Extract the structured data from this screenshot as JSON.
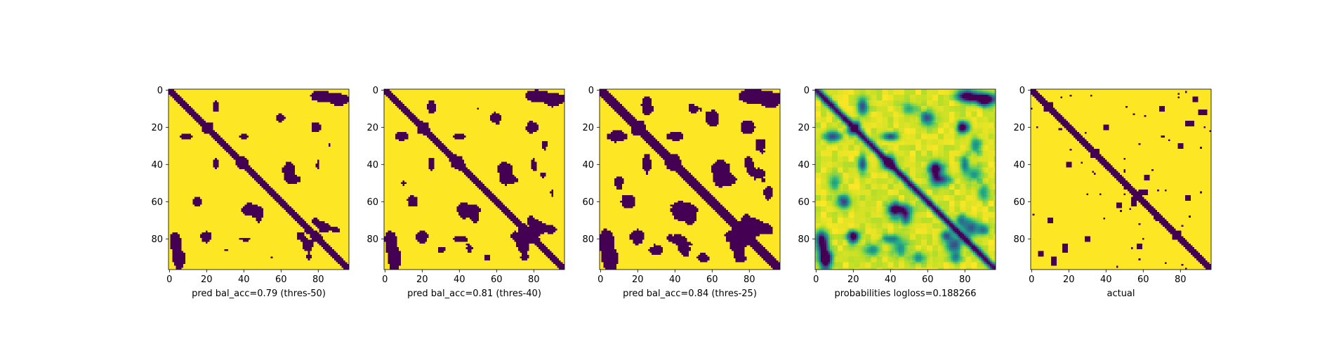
{
  "chart_data": [
    {
      "type": "heatmap",
      "title": "",
      "xlabel": "pred bal_acc=0.79 (thres-50)",
      "ylabel": "",
      "colormap": "viridis-binary",
      "x_ticks": [
        0,
        20,
        40,
        60,
        80
      ],
      "y_ticks": [
        0,
        20,
        40,
        60,
        80
      ],
      "xlim": [
        0,
        97
      ],
      "ylim": [
        97,
        0
      ],
      "size": 97,
      "threshold": 0.5
    },
    {
      "type": "heatmap",
      "title": "",
      "xlabel": "pred bal_acc=0.81 (thres-40)",
      "ylabel": "",
      "colormap": "viridis-binary",
      "x_ticks": [
        0,
        20,
        40,
        60,
        80
      ],
      "y_ticks": [
        0,
        20,
        40,
        60,
        80
      ],
      "xlim": [
        0,
        97
      ],
      "ylim": [
        97,
        0
      ],
      "size": 97,
      "threshold": 0.4
    },
    {
      "type": "heatmap",
      "title": "",
      "xlabel": "pred bal_acc=0.84 (thres-25)",
      "ylabel": "",
      "colormap": "viridis-binary",
      "x_ticks": [
        0,
        20,
        40,
        60,
        80
      ],
      "y_ticks": [
        0,
        20,
        40,
        60,
        80
      ],
      "xlim": [
        0,
        97
      ],
      "ylim": [
        97,
        0
      ],
      "size": 97,
      "threshold": 0.25
    },
    {
      "type": "heatmap",
      "title": "",
      "xlabel": "probabilities logloss=0.188266",
      "ylabel": "",
      "colormap": "viridis-continuous",
      "x_ticks": [
        0,
        20,
        40,
        60,
        80
      ],
      "y_ticks": [
        0,
        20,
        40,
        60,
        80
      ],
      "xlim": [
        0,
        97
      ],
      "ylim": [
        97,
        0
      ],
      "size": 97
    },
    {
      "type": "heatmap",
      "title": "",
      "xlabel": "actual",
      "ylabel": "",
      "colormap": "viridis-binary",
      "x_ticks": [
        0,
        20,
        40,
        60,
        80
      ],
      "y_ticks": [
        0,
        20,
        40,
        60,
        80
      ],
      "xlim": [
        0,
        97
      ],
      "ylim": [
        97,
        0
      ],
      "size": 97
    }
  ],
  "colors": {
    "viridis_low": "#440154",
    "viridis_high": "#fde725"
  }
}
